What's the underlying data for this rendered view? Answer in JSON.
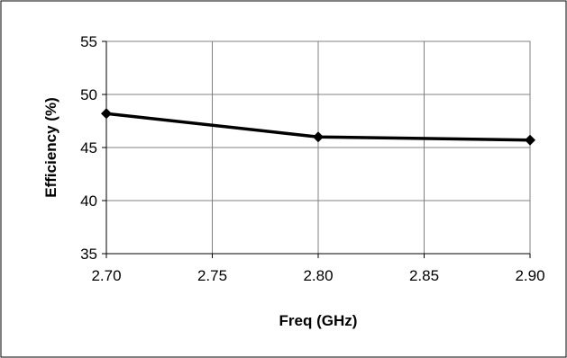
{
  "chart_data": {
    "type": "line",
    "xlabel": "Freq (GHz)",
    "ylabel": "Efficiency (%)",
    "xlim": [
      2.7,
      2.9
    ],
    "ylim": [
      35,
      55
    ],
    "x_ticks": [
      "2.70",
      "2.75",
      "2.80",
      "2.85",
      "2.90"
    ],
    "y_ticks": [
      "35",
      "40",
      "45",
      "50",
      "55"
    ],
    "grid": true,
    "legend": "none",
    "series": [
      {
        "marker": "diamond",
        "color": "#000000",
        "x": [
          2.7,
          2.8,
          2.9
        ],
        "y": [
          48.2,
          46.0,
          45.7
        ]
      }
    ]
  }
}
